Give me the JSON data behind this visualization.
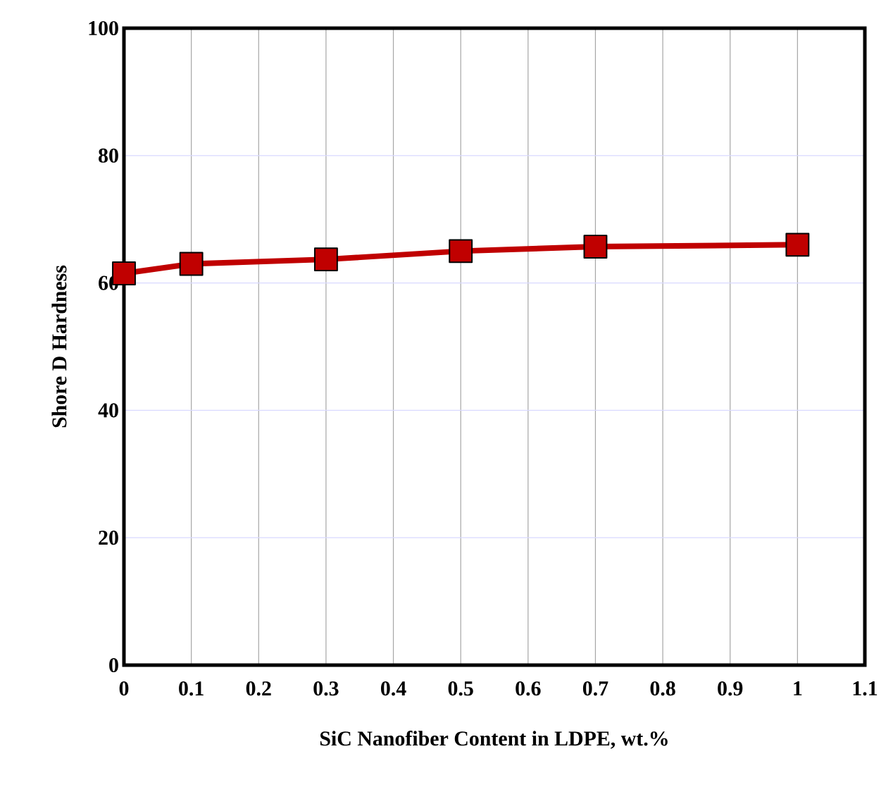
{
  "chart_data": {
    "type": "line",
    "xlabel": "SiC Nanofiber Content in LDPE, wt.%",
    "ylabel": "Shore D Hardness",
    "x": [
      0,
      0.1,
      0.3,
      0.5,
      0.7,
      1
    ],
    "series": [
      {
        "color": "#c00000",
        "values": [
          61.5,
          63.0,
          63.7,
          65.0,
          65.7,
          66.0
        ]
      }
    ],
    "xlim": [
      0,
      1.1
    ],
    "xticks": [
      0,
      0.1,
      0.2,
      0.3,
      0.4,
      0.5,
      0.6,
      0.7,
      0.8,
      0.9,
      1,
      1.1
    ],
    "ylim": [
      0,
      100
    ],
    "yticks": [
      0,
      20,
      40,
      60,
      80,
      100
    ],
    "grid": true,
    "marker": "square",
    "line_style": "solid"
  }
}
